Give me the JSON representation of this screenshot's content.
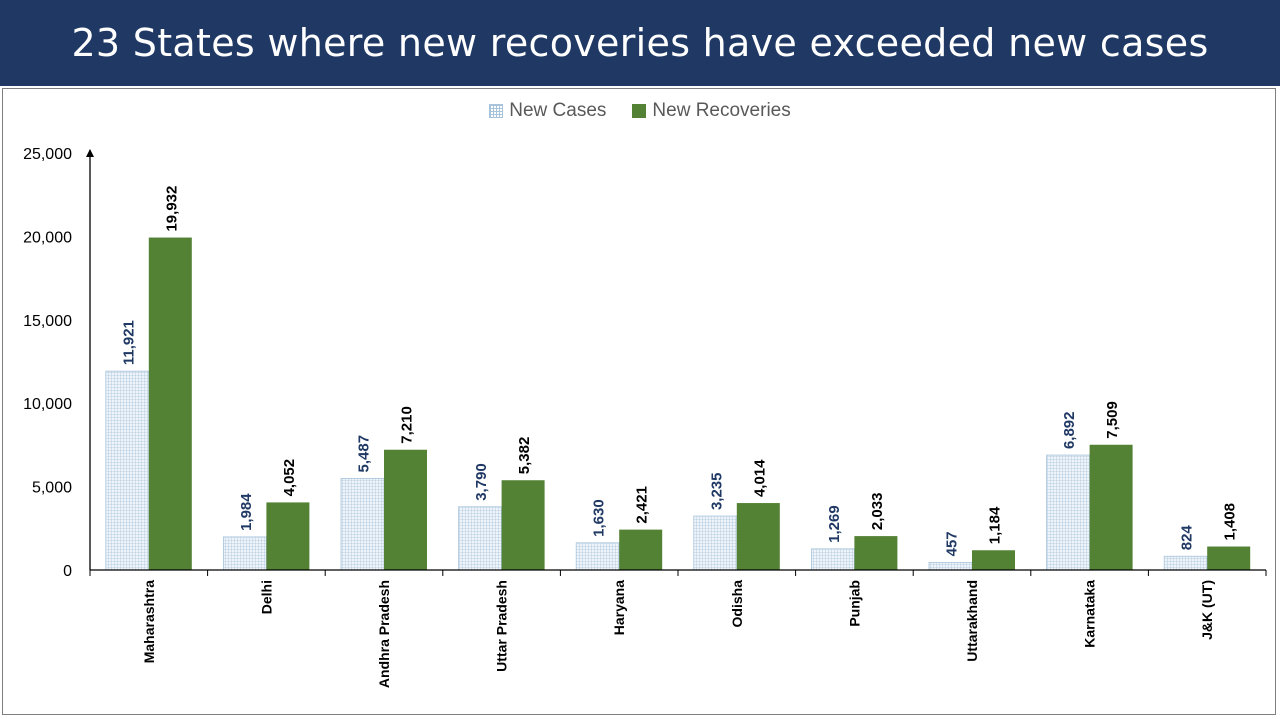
{
  "title": "23 States where new recoveries have exceeded new cases",
  "colors": {
    "header_bg": "#1f3864",
    "new_cases_fill": "#dae8f2",
    "new_cases_grid": "#a8c4dc",
    "new_recoveries_fill": "#548235",
    "label_cases": "#1f3864",
    "label_recoveries": "#000000"
  },
  "legend": {
    "position": "top-center",
    "items": [
      {
        "label": "New Cases"
      },
      {
        "label": "New Recoveries"
      }
    ]
  },
  "chart_data": {
    "type": "bar",
    "categories": [
      "Maharashtra",
      "Delhi",
      "Andhra Pradesh",
      "Uttar Pradesh",
      "Haryana",
      "Odisha",
      "Punjab",
      "Uttarakhand",
      "Karnataka",
      "J&K (UT)"
    ],
    "series": [
      {
        "name": "New Cases",
        "values": [
          11921,
          1984,
          5487,
          3790,
          1630,
          3235,
          1269,
          457,
          6892,
          824
        ]
      },
      {
        "name": "New Recoveries",
        "values": [
          19932,
          4052,
          7210,
          5382,
          2421,
          4014,
          2033,
          1184,
          7509,
          1408
        ]
      }
    ],
    "ylim": [
      0,
      25000
    ],
    "yticks": [
      "0",
      "5,000",
      "10,000",
      "15,000",
      "20,000",
      "25,000"
    ],
    "ytick_values": [
      0,
      5000,
      10000,
      15000,
      20000,
      25000
    ],
    "grid": false,
    "xlabel": "",
    "ylabel": ""
  }
}
